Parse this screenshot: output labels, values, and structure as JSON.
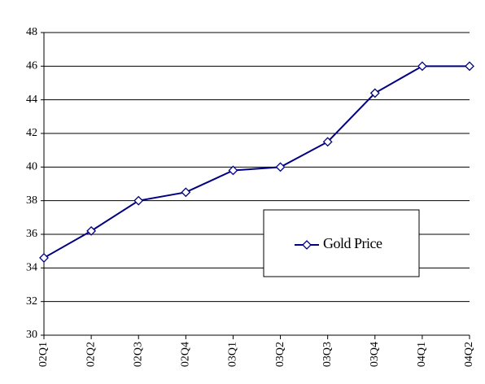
{
  "chart_data": {
    "type": "line",
    "categories": [
      "02Q1",
      "02Q2",
      "02Q3",
      "02Q4",
      "03Q1",
      "03Q2",
      "03Q3",
      "03Q4",
      "04Q1",
      "04Q2"
    ],
    "series": [
      {
        "name": "Gold Price",
        "color": "#000080",
        "values": [
          34.6,
          36.2,
          38,
          38.5,
          39.8,
          40,
          41.5,
          44.4,
          46,
          46
        ]
      }
    ],
    "ylim": [
      30,
      48
    ],
    "yticks": [
      30,
      32,
      34,
      36,
      38,
      40,
      42,
      44,
      46,
      48
    ],
    "grid": true,
    "legend": "right"
  }
}
